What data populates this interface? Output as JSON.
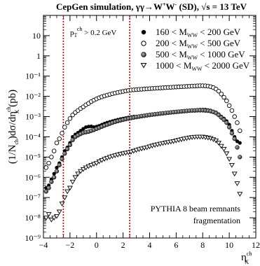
{
  "chart_data": {
    "type": "scatter",
    "title": "CepGen simulation, γγ→W⁺W⁻ (SD),  √s = 13 TeV",
    "title_parts": {
      "prefix": "CepGen simulation, ",
      "process": "γγ→W",
      "w_plus": "+",
      "w_mid": "W",
      "w_minus": "-",
      "tag": " (SD),  ",
      "sqrt_sym": "√",
      "energy": "s = 13 TeV"
    },
    "ylabel_parts": {
      "lead": "(1/N",
      "ch_sub": "ch",
      "mid": ")dσ/dη",
      "x_sub": "X",
      "ch_sup": "ch",
      "unit": " (pb)"
    },
    "xlabel_parts": {
      "eta": "η",
      "x_sub": "X",
      "ch_sup": "ch"
    },
    "cut_annotation": {
      "p": "p",
      "t_sub": "T",
      "ch_sup": "ch",
      "rest": " > 0.2 GeV"
    },
    "footer_annotation": [
      "PYTHIA 8 beam remnants",
      "fragmentation"
    ],
    "x_range": [
      -4,
      12
    ],
    "y_range_log10": [
      -9,
      2
    ],
    "y_scale": "log",
    "x_ticks": [
      "−4",
      "−2",
      "0",
      "2",
      "4",
      "6",
      "8",
      "10",
      "12"
    ],
    "y_ticks": [
      "10⁻⁹",
      "10⁻⁸",
      "10⁻⁷",
      "10⁻⁶",
      "10⁻⁵",
      "10⁻⁴",
      "10⁻³",
      "10⁻²",
      "10⁻¹",
      "1",
      "10"
    ],
    "cut_lines_x": [
      -2.5,
      2.5
    ],
    "legend_position": "top-right",
    "colors": {
      "axis": "#000000",
      "cut_line": "#cc0000",
      "marker": "#000000"
    },
    "series": [
      {
        "name": "160 < M_WW < 200 GeV",
        "legend": {
          "a": "160 < M",
          "sub": "WW",
          "b": " < 200 GeV"
        },
        "marker": "filled-circle",
        "x": [
          -3.8,
          -3.6,
          -3.4,
          -3.2,
          -3.0,
          -2.8,
          -2.6,
          -2.4,
          -2.2,
          -2.0,
          -1.8,
          -1.6,
          -1.4,
          -1.2,
          -1.0,
          -0.8,
          -0.6,
          -0.4,
          -0.2,
          0.0,
          0.2,
          0.4,
          0.6,
          0.8,
          1.0,
          1.2,
          1.4,
          1.6,
          1.8,
          2.0,
          2.2,
          2.4,
          2.6,
          2.8,
          3.0,
          3.2,
          3.4,
          3.6,
          3.8,
          4.0,
          4.2,
          4.4,
          4.6,
          4.8,
          5.0,
          5.2,
          5.4,
          5.6,
          5.8,
          6.0,
          6.2,
          6.4,
          6.6,
          6.8,
          7.0,
          7.2,
          7.4,
          7.6,
          7.8,
          8.0,
          8.2,
          8.4,
          8.6,
          8.8,
          9.0,
          9.2,
          9.4,
          9.6,
          9.8,
          10.0,
          10.2,
          10.4,
          10.6,
          10.8
        ],
        "y": [
          3e-07,
          4e-07,
          8e-07,
          1.5e-06,
          3e-06,
          5e-06,
          1e-05,
          2e-05,
          3e-05,
          5e-05,
          0.0001,
          0.00013,
          0.00016,
          0.0002,
          0.00025,
          0.0003,
          0.00032,
          0.00033,
          0.0003,
          0.00032,
          0.00035,
          0.0004,
          0.00045,
          0.0005,
          0.00055,
          0.0006,
          0.00065,
          0.0007,
          0.00075,
          0.0008,
          0.00085,
          0.0009,
          0.00095,
          0.001,
          0.001,
          0.00105,
          0.0011,
          0.00115,
          0.0012,
          0.00125,
          0.0013,
          0.00135,
          0.0014,
          0.00145,
          0.0015,
          0.00155,
          0.0016,
          0.00165,
          0.0017,
          0.00175,
          0.0018,
          0.00185,
          0.0019,
          0.00195,
          0.002,
          0.00205,
          0.0021,
          0.00215,
          0.0022,
          0.0022,
          0.0022,
          0.0021,
          0.002,
          0.0018,
          0.0016,
          0.0013,
          0.001,
          0.0008,
          0.0006,
          0.0004,
          0.0002,
          0.0001,
          6e-05,
          5e-05
        ]
      },
      {
        "name": "200 < M_WW < 500 GeV",
        "legend": {
          "a": "200 < M",
          "sub": "WW",
          "b": " < 500 GeV"
        },
        "marker": "open-circle",
        "x": [
          -3.8,
          -3.6,
          -3.4,
          -3.2,
          -3.0,
          -2.8,
          -2.6,
          -2.4,
          -2.2,
          -2.0,
          -1.8,
          -1.6,
          -1.4,
          -1.2,
          -1.0,
          -0.8,
          -0.6,
          -0.4,
          -0.2,
          0.0,
          0.2,
          0.4,
          0.6,
          0.8,
          1.0,
          1.2,
          1.4,
          1.6,
          1.8,
          2.0,
          2.2,
          2.4,
          2.6,
          2.8,
          3.0,
          3.2,
          3.4,
          3.6,
          3.8,
          4.0,
          4.2,
          4.4,
          4.6,
          4.8,
          5.0,
          5.2,
          5.4,
          5.6,
          5.8,
          6.0,
          6.2,
          6.4,
          6.6,
          6.8,
          7.0,
          7.2,
          7.4,
          7.6,
          7.8,
          8.0,
          8.2,
          8.4,
          8.6,
          8.8,
          9.0,
          9.2,
          9.4,
          9.6,
          9.8,
          10.0,
          10.2,
          10.4,
          10.6,
          10.8
        ],
        "y": [
          3e-06,
          5e-06,
          1e-05,
          2e-05,
          5e-05,
          8e-05,
          0.00015,
          0.0003,
          0.0005,
          0.0008,
          0.0012,
          0.0016,
          0.002,
          0.0025,
          0.003,
          0.0038,
          0.0045,
          0.0055,
          0.0065,
          0.0075,
          0.0085,
          0.0095,
          0.0105,
          0.0115,
          0.0125,
          0.0135,
          0.0145,
          0.0155,
          0.0165,
          0.0175,
          0.0185,
          0.0195,
          0.0205,
          0.021,
          0.0215,
          0.022,
          0.0225,
          0.023,
          0.0235,
          0.024,
          0.0245,
          0.025,
          0.0255,
          0.026,
          0.0265,
          0.027,
          0.0275,
          0.028,
          0.0285,
          0.029,
          0.0295,
          0.03,
          0.0305,
          0.031,
          0.0315,
          0.032,
          0.0325,
          0.033,
          0.0335,
          0.0335,
          0.033,
          0.032,
          0.03,
          0.027,
          0.023,
          0.018,
          0.013,
          0.009,
          0.006,
          0.0035,
          0.002,
          0.001,
          0.0005,
          0.0002
        ]
      },
      {
        "name": "500 < M_WW < 1000 GeV",
        "legend": {
          "a": "500 < M",
          "sub": "WW",
          "b": " < 1000 GeV"
        },
        "marker": "shaded-circle",
        "x": [
          -3.8,
          -3.6,
          -3.4,
          -3.2,
          -3.0,
          -2.8,
          -2.6,
          -2.4,
          -2.2,
          -2.0,
          -1.8,
          -1.6,
          -1.4,
          -1.2,
          -1.0,
          -0.8,
          -0.6,
          -0.4,
          -0.2,
          0.0,
          0.2,
          0.4,
          0.6,
          0.8,
          1.0,
          1.2,
          1.4,
          1.6,
          1.8,
          2.0,
          2.2,
          2.4,
          2.6,
          2.8,
          3.0,
          3.2,
          3.4,
          3.6,
          3.8,
          4.0,
          4.2,
          4.4,
          4.6,
          4.8,
          5.0,
          5.2,
          5.4,
          5.6,
          5.8,
          6.0,
          6.2,
          6.4,
          6.6,
          6.8,
          7.0,
          7.2,
          7.4,
          7.6,
          7.8,
          8.0,
          8.2,
          8.4,
          8.6,
          8.8,
          9.0,
          9.2,
          9.4,
          9.6,
          9.8,
          10.0,
          10.2,
          10.4,
          10.6,
          10.8
        ],
        "y": [
          2e-07,
          3e-07,
          6e-07,
          1e-06,
          2e-06,
          4e-06,
          8e-06,
          1.5e-05,
          2.5e-05,
          4e-05,
          7e-05,
          0.0001,
          0.00012,
          0.00014,
          0.00016,
          0.00017,
          0.00018,
          0.0002,
          0.00022,
          0.00025,
          0.00028,
          0.00032,
          0.00036,
          0.0004,
          0.00045,
          0.0005,
          0.00055,
          0.0006,
          0.00065,
          0.0007,
          0.00075,
          0.0008,
          0.00085,
          0.0009,
          0.00095,
          0.001,
          0.00105,
          0.0011,
          0.00115,
          0.0012,
          0.00125,
          0.0013,
          0.00135,
          0.0014,
          0.00145,
          0.0015,
          0.00155,
          0.0016,
          0.00165,
          0.0017,
          0.00175,
          0.0018,
          0.00185,
          0.0019,
          0.00195,
          0.002,
          0.002,
          0.00205,
          0.00205,
          0.00205,
          0.002,
          0.00195,
          0.00185,
          0.0017,
          0.0015,
          0.0012,
          0.0009,
          0.0007,
          0.0005,
          0.0003,
          0.00015,
          8e-05,
          3e-05,
          1e-05
        ]
      },
      {
        "name": "1000 < M_WW < 2000 GeV",
        "legend": {
          "a": "1000 < M",
          "sub": "WW",
          "b": " < 2000 GeV"
        },
        "marker": "open-triangle-down",
        "x": [
          -3.8,
          -3.6,
          -3.4,
          -3.2,
          -3.0,
          -2.8,
          -2.6,
          -2.4,
          -2.2,
          -2.0,
          -1.8,
          -1.6,
          -1.4,
          -1.2,
          -1.0,
          -0.8,
          -0.6,
          -0.4,
          -0.2,
          0.0,
          0.2,
          0.4,
          0.6,
          0.8,
          1.0,
          1.2,
          1.4,
          1.6,
          1.8,
          2.0,
          2.2,
          2.4,
          2.6,
          2.8,
          3.0,
          3.2,
          3.4,
          3.6,
          3.8,
          4.0,
          4.2,
          4.4,
          4.6,
          4.8,
          5.0,
          5.2,
          5.4,
          5.6,
          5.8,
          6.0,
          6.2,
          6.4,
          6.6,
          6.8,
          7.0,
          7.2,
          7.4,
          7.6,
          7.8,
          8.0,
          8.2,
          8.4,
          8.6,
          8.8,
          9.0,
          9.2,
          9.4,
          9.6,
          9.8,
          10.0,
          10.2,
          10.4,
          10.6,
          10.8
        ],
        "y": [
          1e-08,
          1.5e-08,
          8e-09,
          1e-08,
          1.2e-08,
          2e-08,
          5e-08,
          1e-07,
          2e-07,
          3e-07,
          6e-07,
          1e-06,
          1.5e-06,
          2e-06,
          2.5e-06,
          3e-06,
          3.5e-06,
          4e-06,
          4.5e-06,
          5e-06,
          6e-06,
          7e-06,
          8e-06,
          9e-06,
          1e-05,
          1.1e-05,
          1.2e-05,
          1.3e-05,
          1.4e-05,
          1.5e-05,
          1.6e-05,
          1.7e-05,
          1.8e-05,
          2e-05,
          2.2e-05,
          2.4e-05,
          2.6e-05,
          2.8e-05,
          3e-05,
          3.3e-05,
          3.6e-05,
          3.9e-05,
          4.2e-05,
          4.5e-05,
          4.8e-05,
          5.1e-05,
          5.4e-05,
          5.7e-05,
          6e-05,
          6.5e-05,
          7e-05,
          7.5e-05,
          8e-05,
          8.5e-05,
          9e-05,
          9.5e-05,
          9.8e-05,
          0.0001,
          0.0001,
          0.0001,
          9.5e-05,
          9e-05,
          8.5e-05,
          7.5e-05,
          6.5e-05,
          5e-05,
          3.5e-05,
          2.5e-05,
          1.5e-05,
          8e-06,
          4e-06,
          1.5e-06,
          5e-07,
          1.5e-07
        ]
      }
    ]
  }
}
